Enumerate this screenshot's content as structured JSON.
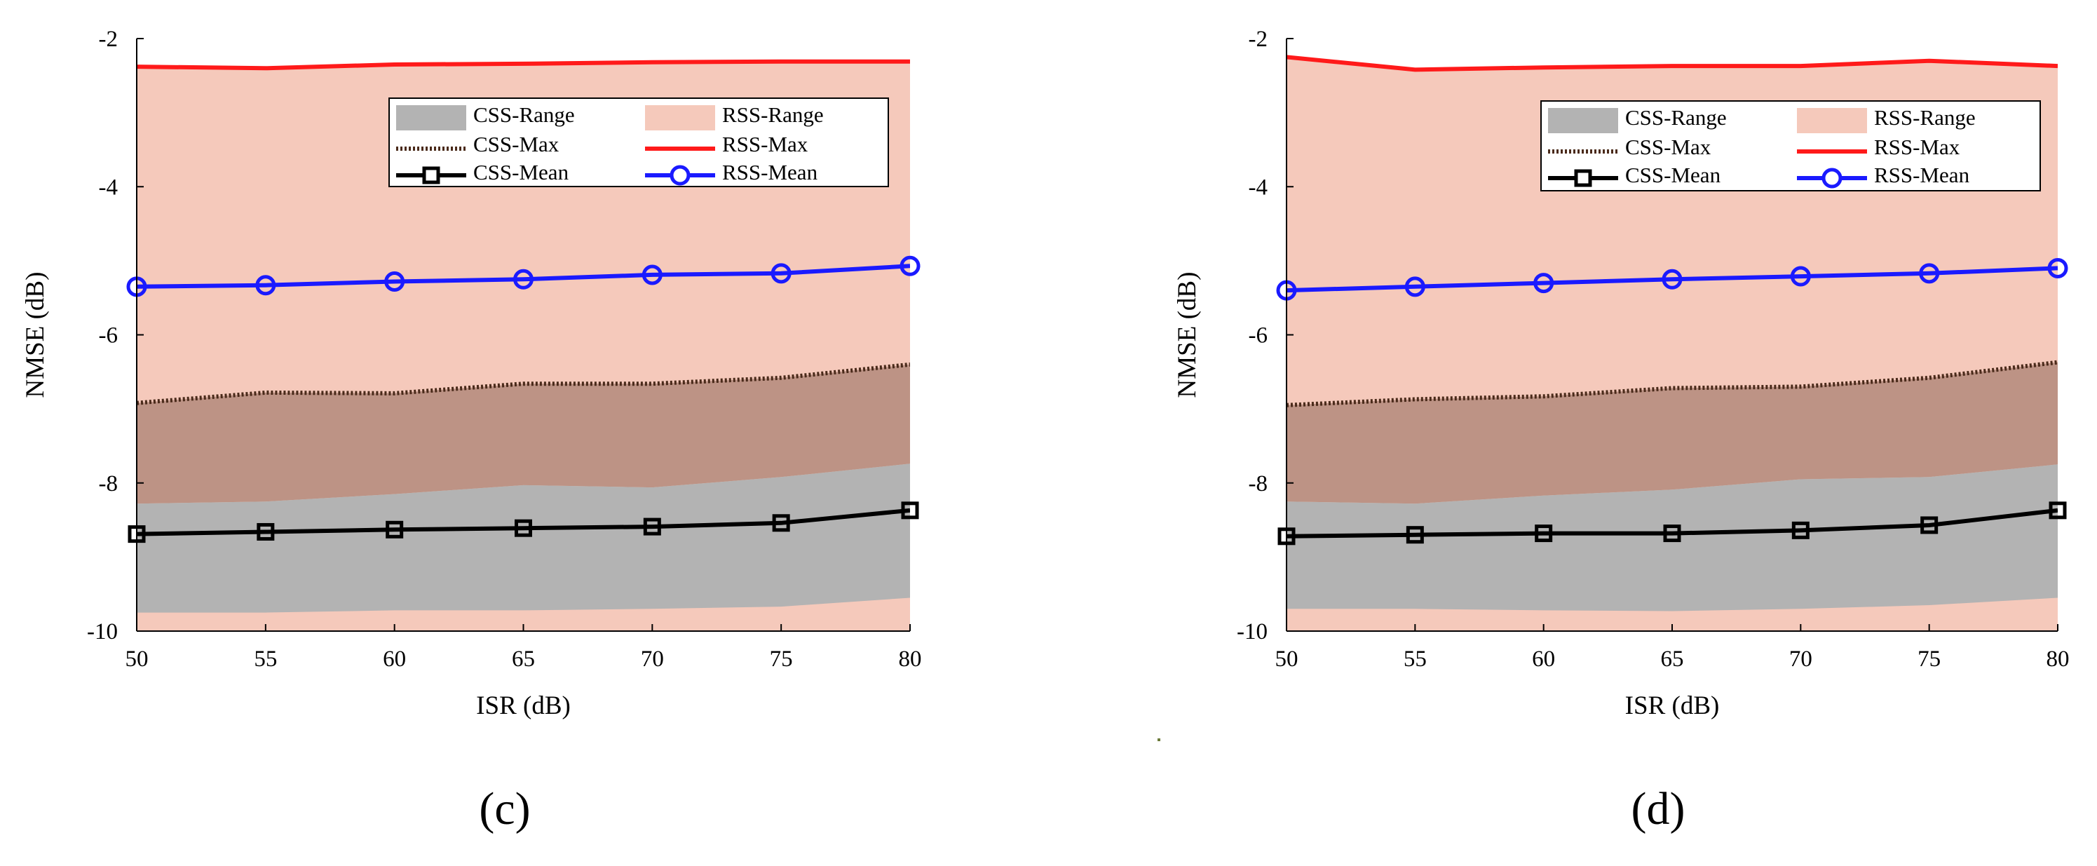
{
  "chart_data": [
    {
      "type": "line",
      "panel_label": "(c)",
      "xlabel": "ISR (dB)",
      "ylabel": "NMSE (dB)",
      "xlim": [
        50,
        80
      ],
      "ylim": [
        -10,
        -2
      ],
      "xticks": [
        50,
        55,
        60,
        65,
        70,
        75,
        80
      ],
      "yticks": [
        -10,
        -8,
        -6,
        -4,
        -2
      ],
      "x": [
        50,
        55,
        60,
        65,
        70,
        75,
        80
      ],
      "series": [
        {
          "name": "RSS-Max",
          "values": [
            -2.38,
            -2.4,
            -2.35,
            -2.34,
            -2.32,
            -2.31,
            -2.31
          ]
        },
        {
          "name": "RSS-Mean",
          "values": [
            -5.35,
            -5.33,
            -5.28,
            -5.25,
            -5.19,
            -5.17,
            -5.07
          ]
        },
        {
          "name": "RSS-Min",
          "values": [
            -10.0,
            -10.0,
            -10.0,
            -10.0,
            -10.0,
            -10.0,
            -10.0
          ]
        },
        {
          "name": "CSS-Max",
          "values": [
            -6.92,
            -6.78,
            -6.79,
            -6.66,
            -6.66,
            -6.58,
            -6.4
          ]
        },
        {
          "name": "CSS-Mean",
          "values": [
            -8.69,
            -8.66,
            -8.63,
            -8.61,
            -8.59,
            -8.54,
            -8.37
          ]
        },
        {
          "name": "CSS-Min",
          "values": [
            -9.75,
            -9.75,
            -9.72,
            -9.72,
            -9.7,
            -9.67,
            -9.55
          ]
        },
        {
          "name": "CSS-RangeUpper",
          "values": [
            -8.28,
            -8.25,
            -8.15,
            -8.03,
            -8.06,
            -7.92,
            -7.74
          ]
        }
      ],
      "legend": [
        "CSS-Range",
        "RSS-Range",
        "CSS-Max",
        "RSS-Max",
        "CSS-Mean",
        "RSS-Mean"
      ],
      "legend_position": "top-right"
    },
    {
      "type": "line",
      "panel_label": "(d)",
      "xlabel": "ISR (dB)",
      "ylabel": "NMSE (dB)",
      "xlim": [
        50,
        80
      ],
      "ylim": [
        -10,
        -2
      ],
      "xticks": [
        50,
        55,
        60,
        65,
        70,
        75,
        80
      ],
      "yticks": [
        -10,
        -8,
        -6,
        -4,
        -2
      ],
      "x": [
        50,
        55,
        60,
        65,
        70,
        75,
        80
      ],
      "series": [
        {
          "name": "RSS-Max",
          "values": [
            -2.25,
            -2.42,
            -2.39,
            -2.37,
            -2.37,
            -2.3,
            -2.37
          ]
        },
        {
          "name": "RSS-Mean",
          "values": [
            -5.4,
            -5.35,
            -5.3,
            -5.25,
            -5.21,
            -5.17,
            -5.1
          ]
        },
        {
          "name": "RSS-Min",
          "values": [
            -10.0,
            -10.0,
            -10.0,
            -10.0,
            -10.0,
            -10.0,
            -10.0
          ]
        },
        {
          "name": "CSS-Max",
          "values": [
            -6.95,
            -6.87,
            -6.83,
            -6.72,
            -6.7,
            -6.58,
            -6.37
          ]
        },
        {
          "name": "CSS-Mean",
          "values": [
            -8.72,
            -8.7,
            -8.68,
            -8.68,
            -8.64,
            -8.57,
            -8.37
          ]
        },
        {
          "name": "CSS-Min",
          "values": [
            -9.7,
            -9.7,
            -9.72,
            -9.73,
            -9.7,
            -9.65,
            -9.55
          ]
        },
        {
          "name": "CSS-RangeUpper",
          "values": [
            -8.25,
            -8.28,
            -8.17,
            -8.09,
            -7.95,
            -7.92,
            -7.75
          ]
        }
      ],
      "legend": [
        "CSS-Range",
        "RSS-Range",
        "CSS-Max",
        "RSS-Max",
        "CSS-Mean",
        "RSS-Mean"
      ],
      "legend_position": "top-right"
    }
  ],
  "colors": {
    "rss_range": "#f5c9bb",
    "overlap": "#bd9385",
    "css_range": "#b3b3b3",
    "rss_max": "#ff1a1a",
    "rss_mean": "#1a1aff",
    "css_max": "#4a2a1a",
    "css_mean": "#000000"
  }
}
